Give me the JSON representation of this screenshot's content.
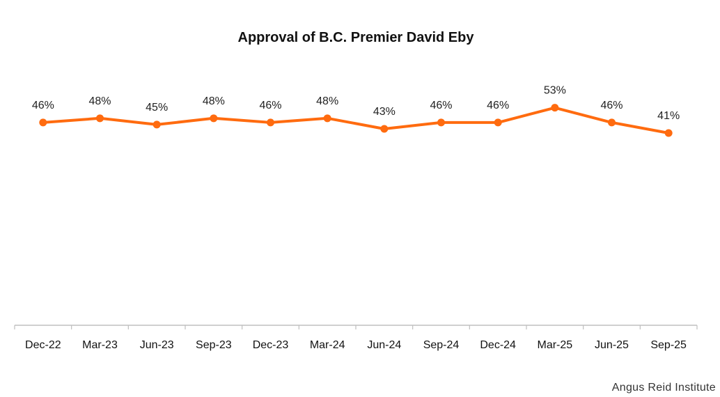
{
  "source": "Angus Reid Institute",
  "colors": {
    "series": "#FF6B0F",
    "axis": "#BFBFBF",
    "text": "#111111"
  },
  "chart_data": {
    "type": "line",
    "title": "Approval of B.C. Premier David Eby",
    "xlabel": "",
    "ylabel": "",
    "categories": [
      "Dec-22",
      "Mar-23",
      "Jun-23",
      "Sep-23",
      "Dec-23",
      "Mar-24",
      "Jun-24",
      "Sep-24",
      "Dec-24",
      "Mar-25",
      "Jun-25",
      "Sep-25"
    ],
    "series": [
      {
        "values": [
          46,
          48,
          45,
          48,
          46,
          48,
          43,
          46,
          46,
          53,
          46,
          41
        ],
        "labels": [
          "46%",
          "48%",
          "45%",
          "48%",
          "46%",
          "48%",
          "43%",
          "46%",
          "46%",
          "53%",
          "46%",
          "41%"
        ]
      }
    ],
    "ylim": [
      -50,
      104
    ],
    "grid": false,
    "legend": "none",
    "markers": true
  }
}
